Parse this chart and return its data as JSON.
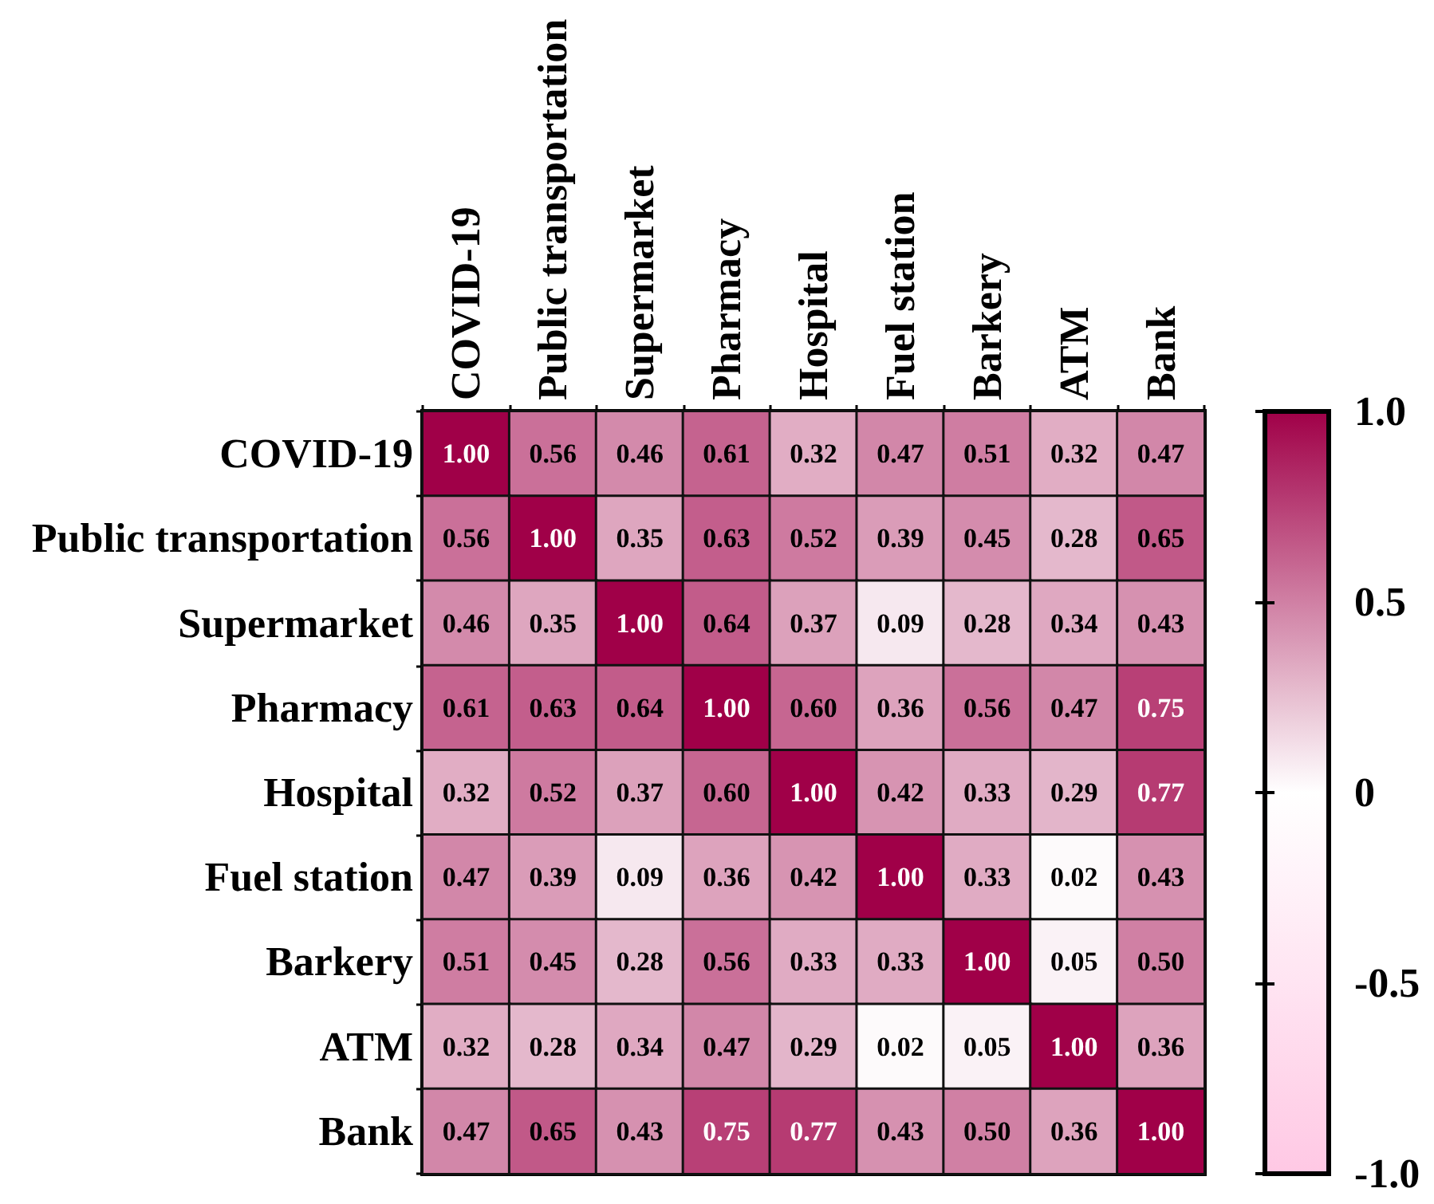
{
  "chart_data": {
    "type": "heatmap",
    "categories": [
      "COVID-19",
      "Public transportation",
      "Supermarket",
      "Pharmacy",
      "Hospital",
      "Fuel station",
      "Barkery",
      "ATM",
      "Bank"
    ],
    "y_categories": [
      "COVID-19",
      "Public transportation",
      "Supermarket",
      "Pharmacy",
      "Hospital",
      "Fuel station",
      "Barkery",
      "ATM",
      "Bank"
    ],
    "cells": [
      [
        1.0,
        0.56,
        0.46,
        0.61,
        0.32,
        0.47,
        0.51,
        0.32,
        0.47
      ],
      [
        0.56,
        1.0,
        0.35,
        0.63,
        0.52,
        0.39,
        0.45,
        0.28,
        0.65
      ],
      [
        0.46,
        0.35,
        1.0,
        0.64,
        0.37,
        0.09,
        0.28,
        0.34,
        0.43
      ],
      [
        0.61,
        0.63,
        0.64,
        1.0,
        0.6,
        0.36,
        0.56,
        0.47,
        0.75
      ],
      [
        0.32,
        0.52,
        0.37,
        0.6,
        1.0,
        0.42,
        0.33,
        0.29,
        0.77
      ],
      [
        0.47,
        0.39,
        0.09,
        0.36,
        0.42,
        1.0,
        0.33,
        0.02,
        0.43
      ],
      [
        0.51,
        0.45,
        0.28,
        0.56,
        0.33,
        0.33,
        1.0,
        0.05,
        0.5
      ],
      [
        0.32,
        0.28,
        0.34,
        0.47,
        0.29,
        0.02,
        0.05,
        1.0,
        0.36
      ],
      [
        0.47,
        0.65,
        0.43,
        0.75,
        0.77,
        0.43,
        0.5,
        0.36,
        1.0
      ]
    ],
    "cell_labels": [
      [
        "1.00",
        "0.56",
        "0.46",
        "0.61",
        "0.32",
        "0.47",
        "0.51",
        "0.32",
        "0.47"
      ],
      [
        "0.56",
        "1.00",
        "0.35",
        "0.63",
        "0.52",
        "0.39",
        "0.45",
        "0.28",
        "0.65"
      ],
      [
        "0.46",
        "0.35",
        "1.00",
        "0.64",
        "0.37",
        "0.09",
        "0.28",
        "0.34",
        "0.43"
      ],
      [
        "0.61",
        "0.63",
        "0.64",
        "1.00",
        "0.60",
        "0.36",
        "0.56",
        "0.47",
        "0.75"
      ],
      [
        "0.32",
        "0.52",
        "0.37",
        "0.60",
        "1.00",
        "0.42",
        "0.33",
        "0.29",
        "0.77"
      ],
      [
        "0.47",
        "0.39",
        "0.09",
        "0.36",
        "0.42",
        "1.00",
        "0.33",
        "0.02",
        "0.43"
      ],
      [
        "0.51",
        "0.45",
        "0.28",
        "0.56",
        "0.33",
        "0.33",
        "1.00",
        "0.05",
        "0.50"
      ],
      [
        "0.32",
        "0.28",
        "0.34",
        "0.47",
        "0.29",
        "0.02",
        "0.05",
        "1.00",
        "0.36"
      ],
      [
        "0.47",
        "0.65",
        "0.43",
        "0.75",
        "0.77",
        "0.43",
        "0.50",
        "0.36",
        "1.00"
      ]
    ],
    "clim": [
      -1,
      1
    ],
    "cticks": [
      {
        "value": 1,
        "label": "1.0"
      },
      0.5,
      0,
      -0.5,
      {
        "value": -1,
        "label": "-1.0"
      }
    ]
  }
}
